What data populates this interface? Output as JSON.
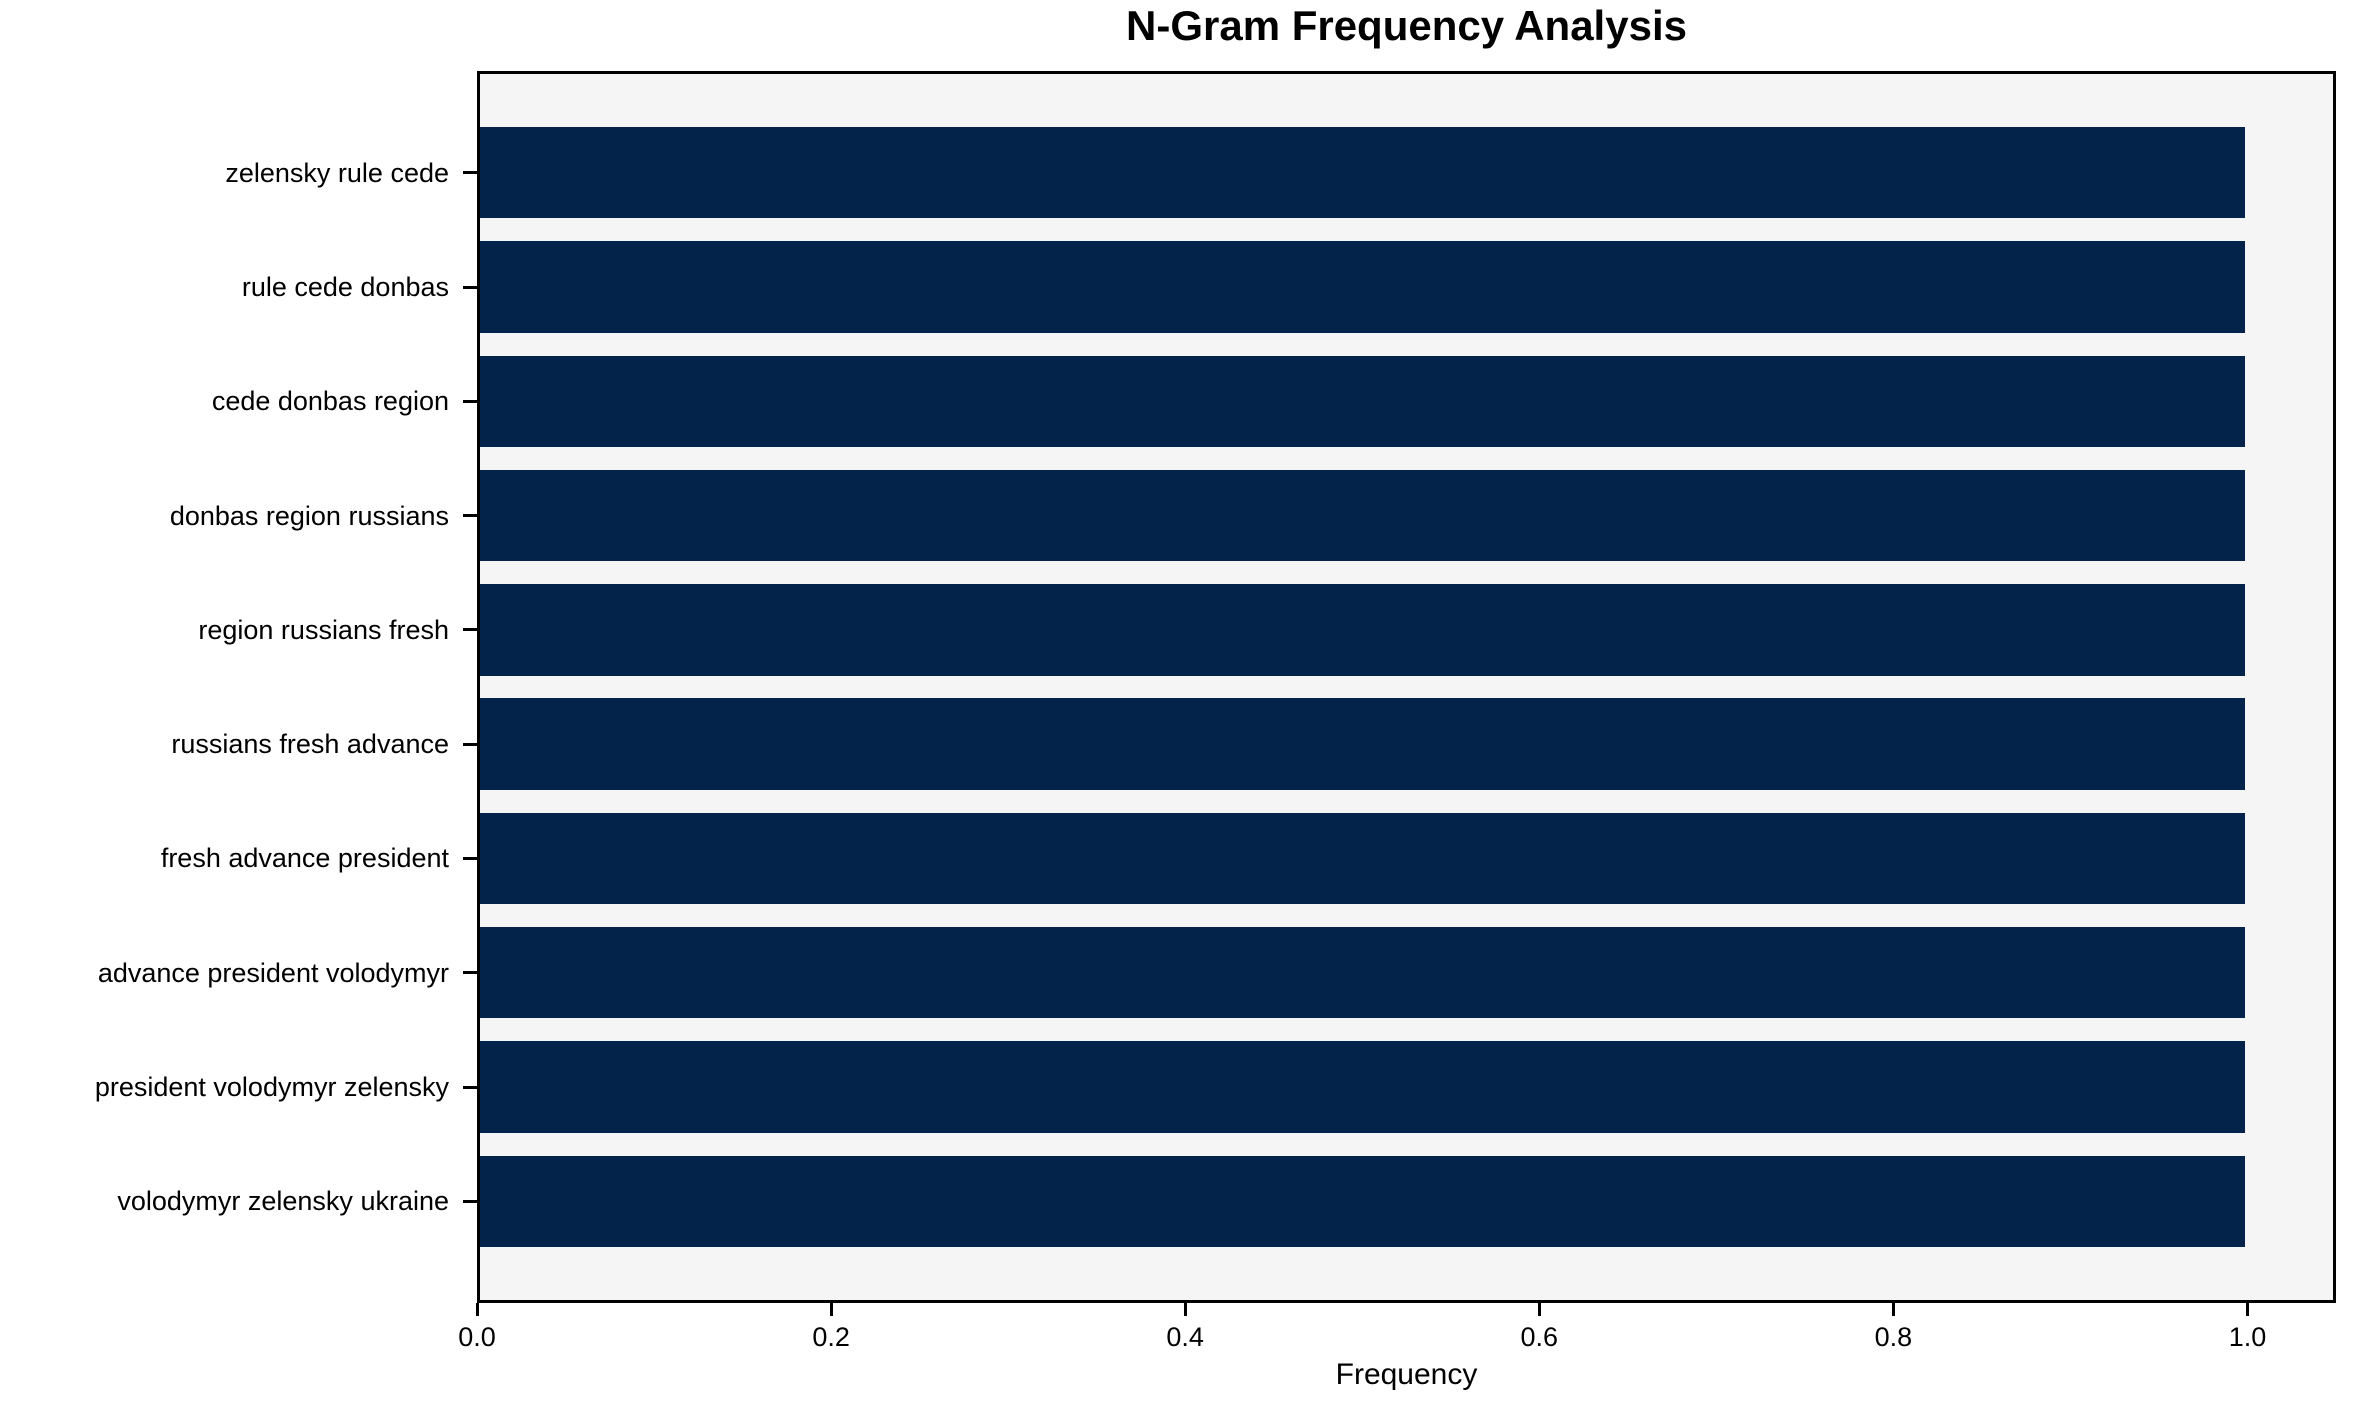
{
  "chart_data": {
    "type": "bar",
    "orientation": "horizontal",
    "title": "N-Gram Frequency Analysis",
    "xlabel": "Frequency",
    "ylabel": "",
    "categories": [
      "zelensky rule cede",
      "rule cede donbas",
      "cede donbas region",
      "donbas region russians",
      "region russians fresh",
      "russians fresh advance",
      "fresh advance president",
      "advance president volodymyr",
      "president volodymyr zelensky",
      "volodymyr zelensky ukraine"
    ],
    "values": [
      1.0,
      1.0,
      1.0,
      1.0,
      1.0,
      1.0,
      1.0,
      1.0,
      1.0,
      1.0
    ],
    "xlim": [
      0,
      1.05
    ],
    "x_ticks": [
      0.0,
      0.2,
      0.4,
      0.6,
      0.8,
      1.0
    ],
    "x_tick_labels": [
      "0.0",
      "0.2",
      "0.4",
      "0.6",
      "0.8",
      "1.0"
    ],
    "bar_color": "#03234b",
    "plot_bg": "#f5f5f5",
    "spine_color": "#000000",
    "grid": false,
    "legend": null
  }
}
